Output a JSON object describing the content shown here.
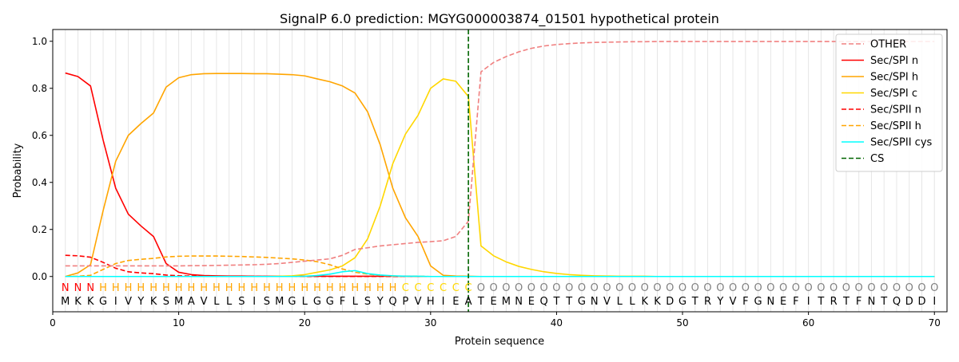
{
  "chart_data": {
    "type": "line",
    "title": "SignalP 6.0 prediction: MGYG000003874_01501 hypothetical protein",
    "xlabel": "Protein sequence",
    "ylabel": "Probability",
    "xlim": [
      0,
      71
    ],
    "ylim": [
      -0.15,
      1.05
    ],
    "x_ticks": [
      0,
      10,
      20,
      30,
      40,
      50,
      60,
      70
    ],
    "y_ticks": [
      0.0,
      0.2,
      0.4,
      0.6,
      0.8,
      1.0
    ],
    "x_tick_labels": [
      "0",
      "10",
      "20",
      "30",
      "40",
      "50",
      "60",
      "70"
    ],
    "y_tick_labels": [
      "0.0",
      "0.2",
      "0.4",
      "0.6",
      "0.8",
      "1.0"
    ],
    "grid": "vertical lines at each residue",
    "legend_position": "top-right",
    "cleavage_site": 33,
    "sequence": "MKKGIVYKSMAVLLSISMGLGGFLSYQPVHIEATEMNEQTTGNVLLKKDGTRYVFGNEFITRTFNTQDDI",
    "labels": "NNNHHHHHHHHHHHHHHHHHHHHHHHHCCCCCCOOOOOOOOOOOOOOOOOOOOOOOOOOOOOOOOOOOOO",
    "label_colors": {
      "N": "#ff0000",
      "H": "#ffa500",
      "C": "#ffd700",
      "O": "#808080"
    },
    "series": [
      {
        "name": "OTHER",
        "color": "#f08080",
        "dash": "dashed",
        "values": [
          0.045,
          0.045,
          0.045,
          0.045,
          0.045,
          0.045,
          0.045,
          0.045,
          0.045,
          0.045,
          0.046,
          0.046,
          0.047,
          0.048,
          0.049,
          0.05,
          0.052,
          0.055,
          0.06,
          0.065,
          0.07,
          0.075,
          0.09,
          0.115,
          0.122,
          0.13,
          0.135,
          0.14,
          0.145,
          0.148,
          0.152,
          0.17,
          0.235,
          0.87,
          0.91,
          0.935,
          0.955,
          0.97,
          0.98,
          0.986,
          0.99,
          0.993,
          0.995,
          0.996,
          0.997,
          0.998,
          0.998,
          0.999,
          0.999,
          0.999,
          0.999,
          0.999,
          0.999,
          0.999,
          0.999,
          0.999,
          0.999,
          0.999,
          0.999,
          0.999,
          0.999,
          0.999,
          0.999,
          0.999,
          0.999,
          0.999,
          0.999,
          0.999,
          0.999,
          0.999
        ]
      },
      {
        "name": "Sec/SPI n",
        "color": "#ff0000",
        "dash": "solid",
        "values": [
          0.865,
          0.85,
          0.81,
          0.58,
          0.375,
          0.265,
          0.215,
          0.17,
          0.055,
          0.018,
          0.008,
          0.004,
          0.003,
          0.002,
          0.002,
          0.001,
          0.001,
          0.001,
          0.001,
          0.001,
          0.001,
          0.001,
          0.001,
          0.001,
          0.001,
          0.001,
          0.001,
          0.001,
          0.0,
          0.0,
          0.0,
          0.0,
          0.0,
          0.0,
          0.0,
          0.0,
          0.0,
          0.0,
          0.0,
          0.0,
          0.0,
          0.0,
          0.0,
          0.0,
          0.0,
          0.0,
          0.0,
          0.0,
          0.0,
          0.0,
          0.0,
          0.0,
          0.0,
          0.0,
          0.0,
          0.0,
          0.0,
          0.0,
          0.0,
          0.0,
          0.0,
          0.0,
          0.0,
          0.0,
          0.0,
          0.0,
          0.0,
          0.0,
          0.0,
          0.0
        ]
      },
      {
        "name": "Sec/SPI h",
        "color": "#ffa500",
        "dash": "solid",
        "values": [
          0.0,
          0.015,
          0.05,
          0.28,
          0.49,
          0.6,
          0.65,
          0.695,
          0.805,
          0.845,
          0.858,
          0.862,
          0.863,
          0.863,
          0.863,
          0.862,
          0.862,
          0.86,
          0.858,
          0.853,
          0.84,
          0.828,
          0.81,
          0.78,
          0.7,
          0.56,
          0.375,
          0.25,
          0.17,
          0.045,
          0.005,
          0.002,
          0.001,
          0.0,
          0.0,
          0.0,
          0.0,
          0.0,
          0.0,
          0.0,
          0.0,
          0.0,
          0.0,
          0.0,
          0.0,
          0.0,
          0.0,
          0.0,
          0.0,
          0.0,
          0.0,
          0.0,
          0.0,
          0.0,
          0.0,
          0.0,
          0.0,
          0.0,
          0.0,
          0.0,
          0.0,
          0.0,
          0.0,
          0.0,
          0.0,
          0.0,
          0.0,
          0.0,
          0.0,
          0.0
        ]
      },
      {
        "name": "Sec/SPI c",
        "color": "#ffd700",
        "dash": "solid",
        "values": [
          0.0,
          0.0,
          0.0,
          0.0,
          0.0,
          0.0,
          0.0,
          0.0,
          0.0,
          0.0,
          0.0,
          0.0,
          0.0,
          0.0,
          0.0,
          0.0,
          0.0,
          0.001,
          0.003,
          0.008,
          0.018,
          0.028,
          0.045,
          0.08,
          0.16,
          0.3,
          0.48,
          0.605,
          0.685,
          0.8,
          0.84,
          0.83,
          0.765,
          0.13,
          0.088,
          0.062,
          0.043,
          0.03,
          0.02,
          0.013,
          0.008,
          0.005,
          0.003,
          0.002,
          0.001,
          0.001,
          0.001,
          0.0,
          0.0,
          0.0,
          0.0,
          0.0,
          0.0,
          0.0,
          0.0,
          0.0,
          0.0,
          0.0,
          0.0,
          0.0,
          0.0,
          0.0,
          0.0,
          0.0,
          0.0,
          0.0,
          0.0,
          0.0,
          0.0,
          0.0
        ]
      },
      {
        "name": "Sec/SPII n",
        "color": "#ff0000",
        "dash": "dashed",
        "values": [
          0.09,
          0.088,
          0.082,
          0.06,
          0.035,
          0.02,
          0.015,
          0.012,
          0.006,
          0.003,
          0.002,
          0.001,
          0.001,
          0.001,
          0.001,
          0.001,
          0.0,
          0.0,
          0.0,
          0.0,
          0.0,
          0.0,
          0.0,
          0.0,
          0.0,
          0.0,
          0.0,
          0.0,
          0.0,
          0.0,
          0.0,
          0.0,
          0.0,
          0.0,
          0.0,
          0.0,
          0.0,
          0.0,
          0.0,
          0.0,
          0.0,
          0.0,
          0.0,
          0.0,
          0.0,
          0.0,
          0.0,
          0.0,
          0.0,
          0.0,
          0.0,
          0.0,
          0.0,
          0.0,
          0.0,
          0.0,
          0.0,
          0.0,
          0.0,
          0.0,
          0.0,
          0.0,
          0.0,
          0.0,
          0.0,
          0.0,
          0.0,
          0.0,
          0.0,
          0.0
        ]
      },
      {
        "name": "Sec/SPII h",
        "color": "#ffa500",
        "dash": "dashed",
        "values": [
          0.0,
          0.001,
          0.005,
          0.03,
          0.055,
          0.068,
          0.073,
          0.077,
          0.083,
          0.086,
          0.087,
          0.087,
          0.087,
          0.086,
          0.085,
          0.083,
          0.081,
          0.078,
          0.075,
          0.07,
          0.063,
          0.05,
          0.032,
          0.018,
          0.01,
          0.005,
          0.002,
          0.001,
          0.001,
          0.0,
          0.0,
          0.0,
          0.0,
          0.0,
          0.0,
          0.0,
          0.0,
          0.0,
          0.0,
          0.0,
          0.0,
          0.0,
          0.0,
          0.0,
          0.0,
          0.0,
          0.0,
          0.0,
          0.0,
          0.0,
          0.0,
          0.0,
          0.0,
          0.0,
          0.0,
          0.0,
          0.0,
          0.0,
          0.0,
          0.0,
          0.0,
          0.0,
          0.0,
          0.0,
          0.0,
          0.0,
          0.0,
          0.0,
          0.0,
          0.0
        ]
      },
      {
        "name": "Sec/SPII cys",
        "color": "#00ffff",
        "dash": "solid",
        "values": [
          0.0,
          0.0,
          0.0,
          0.0,
          0.0,
          0.0,
          0.0,
          0.0,
          0.0,
          0.0,
          0.0,
          0.0,
          0.0,
          0.0,
          0.0,
          0.0,
          0.0,
          0.0,
          0.0,
          0.001,
          0.004,
          0.01,
          0.02,
          0.025,
          0.012,
          0.006,
          0.003,
          0.001,
          0.001,
          0.0,
          0.0,
          0.0,
          0.0,
          0.0,
          0.0,
          0.0,
          0.0,
          0.0,
          0.0,
          0.0,
          0.0,
          0.0,
          0.0,
          0.0,
          0.0,
          0.0,
          0.0,
          0.0,
          0.0,
          0.0,
          0.0,
          0.0,
          0.0,
          0.0,
          0.0,
          0.0,
          0.0,
          0.0,
          0.0,
          0.0,
          0.0,
          0.0,
          0.0,
          0.0,
          0.0,
          0.0,
          0.0,
          0.0,
          0.0,
          0.0
        ]
      }
    ],
    "cs_legend": {
      "name": "CS",
      "color": "#006400",
      "dash": "dashed"
    }
  }
}
